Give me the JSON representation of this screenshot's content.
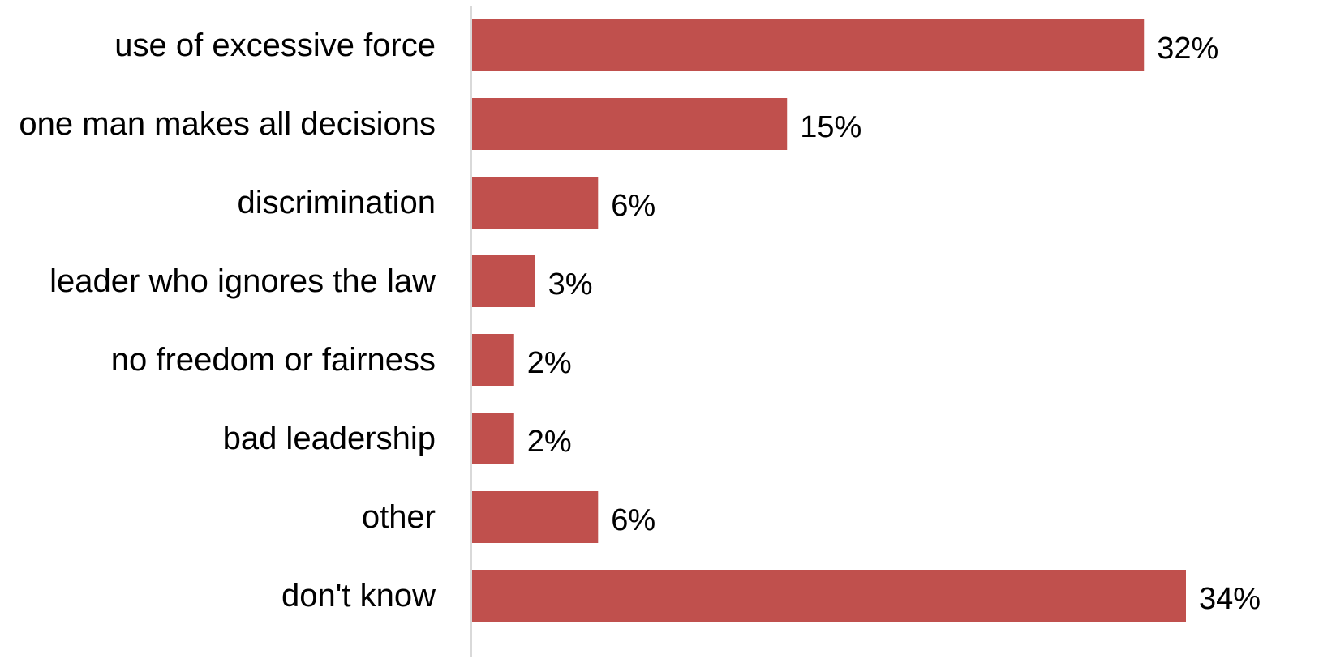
{
  "chart_data": {
    "type": "bar",
    "orientation": "horizontal",
    "categories": [
      "use of excessive force",
      "one man makes all decisions",
      "discrimination",
      "leader who ignores the law",
      "no freedom or fairness",
      "bad leadership",
      "other",
      "don't know"
    ],
    "values": [
      32,
      15,
      6,
      3,
      2,
      2,
      6,
      34
    ],
    "value_labels": [
      "32%",
      "15%",
      "6%",
      "3%",
      "2%",
      "2%",
      "6%",
      "34%"
    ],
    "x_unit": "%",
    "xlim": [
      0,
      34
    ],
    "bar_color": "#c0504d",
    "axis_color": "#d9d9d9",
    "grid": false,
    "legend": "none",
    "title": "",
    "xlabel": "",
    "ylabel": ""
  }
}
